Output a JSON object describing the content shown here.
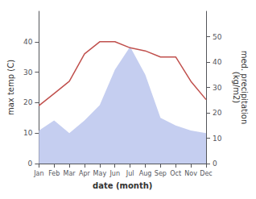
{
  "chart_data": {
    "type": "line",
    "categories": [
      "Jan",
      "Feb",
      "Mar",
      "Apr",
      "May",
      "Jun",
      "Jul",
      "Aug",
      "Sep",
      "Oct",
      "Nov",
      "Dec"
    ],
    "series": [
      {
        "type": "area",
        "color": "#c5cef0",
        "axis": "y2",
        "values": [
          13,
          17,
          12,
          17,
          23,
          37,
          46,
          35,
          18,
          15,
          13,
          12
        ]
      },
      {
        "type": "line",
        "color": "#c0504d",
        "values": [
          19,
          23,
          27,
          36,
          40,
          40,
          38,
          37,
          35,
          35,
          27,
          21
        ]
      }
    ],
    "xlabel": "date (month)",
    "ylabel": "max temp (C)",
    "y2label": "med. precipitation\n(kg/m2)",
    "ylim": [
      0,
      50
    ],
    "yticks": [
      0,
      10,
      20,
      30,
      40
    ],
    "y2lim": [
      0,
      60
    ],
    "y2ticks": [
      0,
      10,
      20,
      30,
      40,
      50
    ],
    "grid": false
  }
}
